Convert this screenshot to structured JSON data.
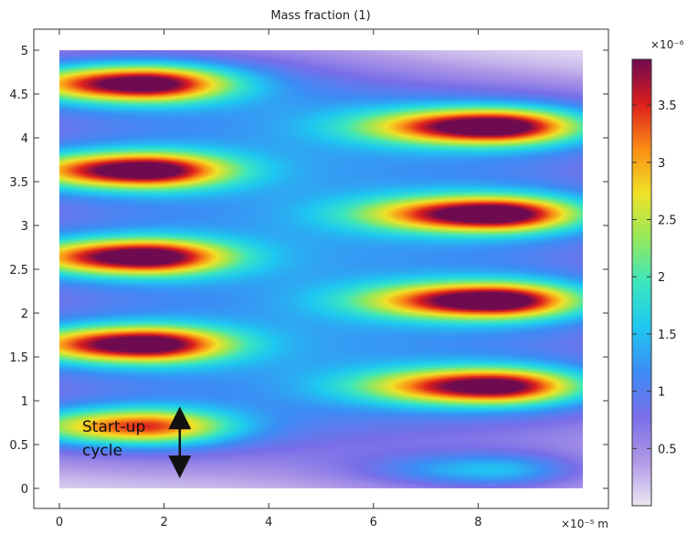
{
  "chart_data": {
    "type": "heatmap",
    "title": "Mass fraction (1)",
    "x_axis": {
      "range": [
        0,
        10
      ],
      "ticks": [
        0,
        2,
        4,
        6,
        8
      ],
      "tick_labels": [
        "0",
        "2",
        "4",
        "6",
        "8"
      ],
      "unit_label": "×10⁻⁵ m"
    },
    "y_axis": {
      "range": [
        0,
        5
      ],
      "ticks": [
        0,
        0.5,
        1,
        1.5,
        2,
        2.5,
        3,
        3.5,
        4,
        4.5,
        5
      ],
      "tick_labels": [
        "0",
        "0.5",
        "1",
        "1.5",
        "2",
        "2.5",
        "3",
        "3.5",
        "4",
        "4.5",
        "5"
      ]
    },
    "colorbar": {
      "range": [
        0,
        3.9
      ],
      "exponent_label": "×10⁻⁶",
      "ticks": [
        0.5,
        1,
        1.5,
        2,
        2.5,
        3,
        3.5
      ],
      "tick_labels": [
        "0.5",
        "1",
        "1.5",
        "2",
        "2.5",
        "3",
        "3.5"
      ],
      "colormap": "rainbow (lavender → purple → blue → cyan → green → yellow → orange → red → dark purple)"
    },
    "hotspots": [
      {
        "x": 1.6,
        "y": 4.62,
        "peak": 3.8
      },
      {
        "x": 1.6,
        "y": 3.63,
        "peak": 3.8
      },
      {
        "x": 1.6,
        "y": 2.64,
        "peak": 3.8
      },
      {
        "x": 1.6,
        "y": 1.64,
        "peak": 3.8
      },
      {
        "x": 1.6,
        "y": 0.7,
        "peak": 3.0
      },
      {
        "x": 8.3,
        "y": 4.13,
        "peak": 3.9
      },
      {
        "x": 8.3,
        "y": 3.13,
        "peak": 3.9
      },
      {
        "x": 8.3,
        "y": 2.14,
        "peak": 3.9
      },
      {
        "x": 8.3,
        "y": 1.16,
        "peak": 3.7
      },
      {
        "x": 8.3,
        "y": 0.2,
        "peak": 1.3
      }
    ],
    "annotation": {
      "lines": [
        "Start-up",
        "cycle"
      ],
      "arrow_x": 2.3,
      "arrow_y": [
        0.1,
        0.95
      ]
    }
  }
}
